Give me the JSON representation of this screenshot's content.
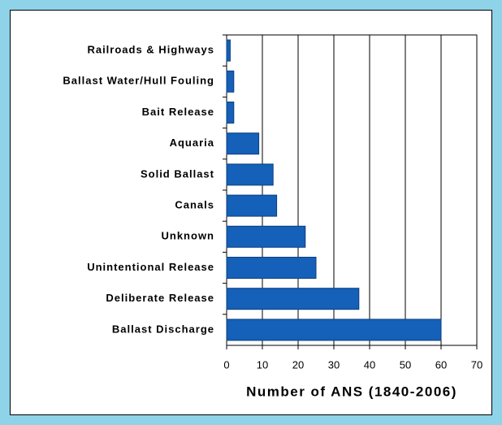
{
  "chart_data": {
    "type": "bar",
    "orientation": "horizontal",
    "categories": [
      "Railroads & Highways",
      "Ballast Water/Hull Fouling",
      "Bait Release",
      "Aquaria",
      "Solid Ballast",
      "Canals",
      "Unknown",
      "Unintentional Release",
      "Deliberate Release",
      "Ballast Discharge"
    ],
    "values": [
      1,
      2,
      2,
      9,
      13,
      14,
      22,
      25,
      37,
      60
    ],
    "color": "#1560b8",
    "xlabel": "Number of ANS (1840-2006)",
    "xlim": [
      0,
      70
    ],
    "xticks": [
      0,
      10,
      20,
      30,
      40,
      50,
      60,
      70
    ],
    "grid": true
  }
}
